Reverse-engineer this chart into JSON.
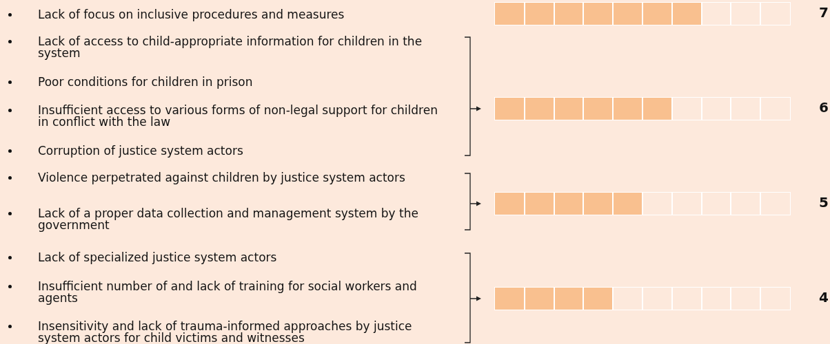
{
  "chart_data": {
    "type": "bar",
    "orientation": "horizontal",
    "categories": [
      null,
      null,
      null,
      null
    ],
    "values": [
      7,
      6,
      5,
      4
    ],
    "color": "#f9c08f",
    "xlim": [
      0,
      10
    ],
    "tick_labels": false,
    "data_labels": true,
    "annotations": [
      "Lack of focus on inclusive procedures and measures",
      "Lack of access to child-appropriate information for children in the system",
      "Poor conditions for children in prison",
      "Insufficient access to various forms of non-legal support for children in conflict with the law",
      "Corruption of justice system actors",
      "Violence perpetrated against children by justice system actors",
      "Lack of a proper data collection and management system by the government",
      "Lack of specialized justice system actors",
      "Insufficient number of and lack of training for social workers and agents",
      "Insensitivity and lack of trauma-informed approaches by justice system actors for child victims and witnesses"
    ]
  }
}
